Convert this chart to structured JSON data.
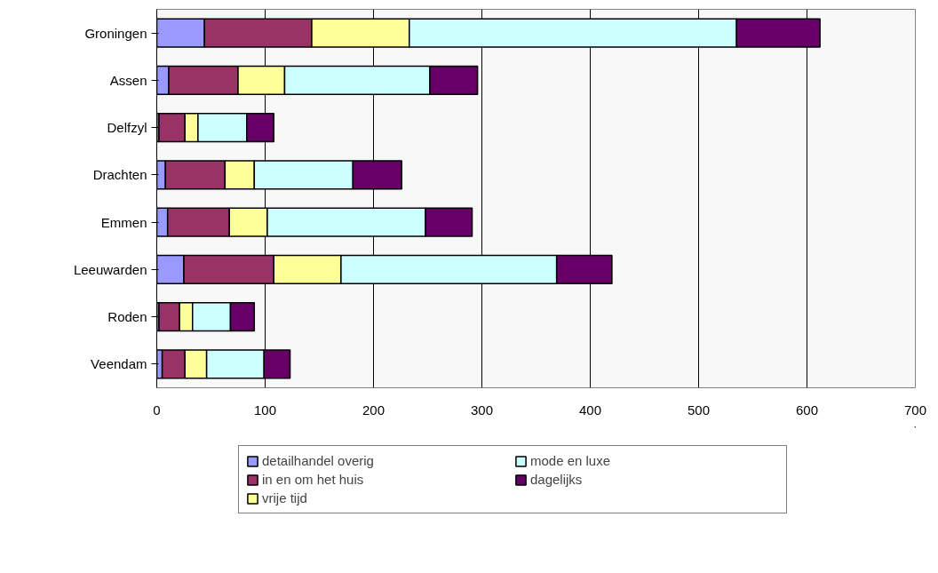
{
  "chart_data": {
    "type": "bar",
    "orientation": "horizontal",
    "stacked": true,
    "categories": [
      "Groningen",
      "Assen",
      "Delfzyl",
      "Drachten",
      "Emmen",
      "Leeuwarden",
      "Roden",
      "Veendam"
    ],
    "series": [
      {
        "name": "detailhandel overig",
        "color": "#9999ff",
        "values": [
          44,
          11,
          2,
          8,
          10,
          25,
          2,
          5
        ]
      },
      {
        "name": "in en om het huis",
        "color": "#993366",
        "values": [
          99,
          64,
          24,
          55,
          57,
          83,
          19,
          21
        ]
      },
      {
        "name": "vrije tijd",
        "color": "#ffff99",
        "values": [
          90,
          43,
          12,
          27,
          35,
          62,
          12,
          20
        ]
      },
      {
        "name": "mode en luxe",
        "color": "#ccffff",
        "values": [
          302,
          134,
          45,
          91,
          146,
          199,
          35,
          53
        ]
      },
      {
        "name": "dagelijks",
        "color": "#660066",
        "values": [
          77,
          44,
          25,
          45,
          43,
          51,
          22,
          24
        ]
      }
    ],
    "xlim": [
      0,
      700
    ],
    "xticks": [
      0,
      100,
      200,
      300,
      400,
      500,
      600,
      700
    ],
    "grid": "x",
    "legend": "bottom"
  }
}
